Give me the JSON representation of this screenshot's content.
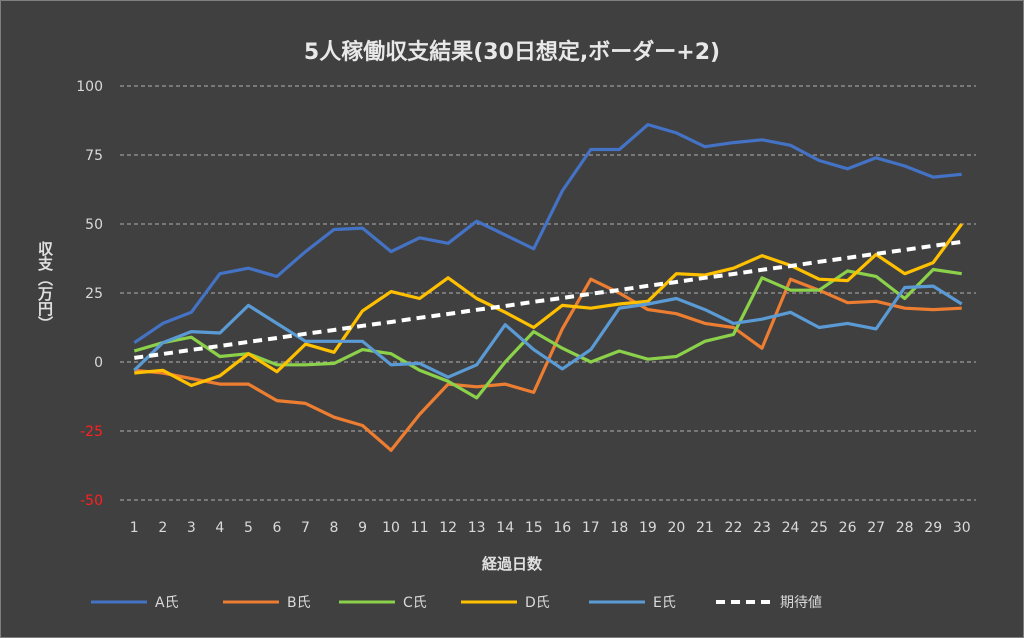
{
  "chart_data": {
    "type": "line",
    "title": "5人稼働収支結果(30日想定,ボーダー+2)",
    "xlabel": "経過日数",
    "ylabel": "収支（万円）",
    "ylim": [
      -50,
      100
    ],
    "yticks": [
      100,
      75,
      50,
      25,
      0,
      -25,
      -50
    ],
    "negative_tick_color": "#ff2020",
    "grid": true,
    "legend_position": "bottom",
    "x": [
      1,
      2,
      3,
      4,
      5,
      6,
      7,
      8,
      9,
      10,
      11,
      12,
      13,
      14,
      15,
      16,
      17,
      18,
      19,
      20,
      21,
      22,
      23,
      24,
      25,
      26,
      27,
      28,
      29,
      30
    ],
    "series": [
      {
        "name": "A氏",
        "color": "#4472c4",
        "dashed": false,
        "values": [
          7,
          14,
          18,
          32,
          34,
          31,
          40,
          48,
          48.5,
          40,
          45,
          43,
          51,
          46,
          41,
          62,
          77,
          77,
          86,
          83,
          78,
          79.5,
          80.5,
          78.5,
          73,
          70,
          74,
          71,
          67,
          68
        ]
      },
      {
        "name": "B氏",
        "color": "#ed7d31",
        "dashed": false,
        "values": [
          -3,
          -4,
          -6,
          -8,
          -8,
          -14,
          -15,
          -20,
          -23,
          -32,
          -19,
          -8,
          -9,
          -8,
          -11,
          12,
          30,
          25,
          19,
          17.5,
          14,
          12.5,
          5,
          30,
          26,
          21.5,
          22,
          19.5,
          19,
          19.5
        ]
      },
      {
        "name": "C氏",
        "color": "#8bd14a",
        "dashed": false,
        "values": [
          4,
          7,
          9,
          2,
          3,
          -1,
          -1,
          -0.5,
          4.5,
          3,
          -3,
          -7,
          -13,
          0,
          11,
          5,
          0,
          4,
          1,
          2,
          7.5,
          10,
          30.5,
          26,
          26,
          33,
          31,
          23,
          33.5,
          32
        ]
      },
      {
        "name": "D氏",
        "color": "#ffc000",
        "dashed": false,
        "values": [
          -4,
          -3,
          -8.5,
          -5,
          3,
          -3.5,
          6.5,
          3.5,
          18.5,
          25.5,
          23,
          30.5,
          23,
          18,
          12.5,
          20.5,
          19.5,
          21,
          22,
          32,
          31.5,
          34,
          38.5,
          35,
          30,
          29.5,
          39,
          32,
          36,
          50
        ]
      },
      {
        "name": "E氏",
        "color": "#5b9bd5",
        "dashed": false,
        "values": [
          -3,
          7,
          11,
          10.5,
          20.5,
          14,
          7.5,
          7.5,
          7.5,
          -1,
          -0.5,
          -5.5,
          -1,
          13.5,
          4.5,
          -2.5,
          4.5,
          19.5,
          21,
          23,
          19,
          14,
          15.5,
          18,
          12.5,
          14,
          12,
          27,
          27.5,
          21
        ]
      },
      {
        "name": "期待値",
        "color": "#ffffff",
        "dashed": true,
        "values": [
          1.5,
          2.9,
          4.4,
          5.8,
          7.3,
          8.7,
          10.2,
          11.6,
          13.1,
          14.5,
          16,
          17.4,
          18.9,
          20.3,
          21.8,
          23.2,
          24.7,
          26.1,
          27.6,
          29,
          30.5,
          31.9,
          33.4,
          34.8,
          36.3,
          37.7,
          39.2,
          40.6,
          42.1,
          43.5
        ]
      }
    ]
  }
}
